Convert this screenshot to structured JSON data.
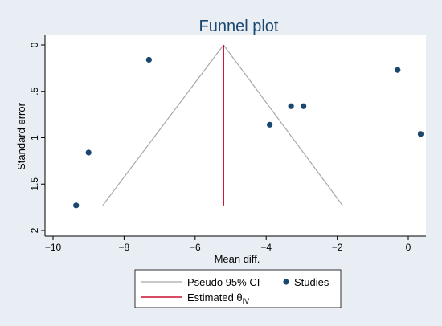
{
  "chart_data": {
    "type": "scatter",
    "title": "Funnel plot",
    "xlabel": "Mean diff.",
    "ylabel": "Standard error",
    "xlim": [
      -10.3,
      0.4
    ],
    "ylim": [
      0,
      2.0
    ],
    "y_reversed": true,
    "x_ticks": [
      -10,
      -8,
      -6,
      -4,
      -2,
      0
    ],
    "y_ticks": [
      0,
      0.5,
      1,
      1.5,
      2
    ],
    "x_tick_labels": [
      "−10",
      "−8",
      "−6",
      "−4",
      "−2",
      "0"
    ],
    "y_tick_labels": [
      "0",
      ".5",
      "1",
      "1.5",
      "2"
    ],
    "grid": false,
    "studies": {
      "name": "Studies",
      "points": [
        {
          "x": -9.35,
          "y": 1.73
        },
        {
          "x": -9.0,
          "y": 1.16
        },
        {
          "x": -7.3,
          "y": 0.16
        },
        {
          "x": -3.9,
          "y": 0.86
        },
        {
          "x": -3.3,
          "y": 0.66
        },
        {
          "x": -2.95,
          "y": 0.66
        },
        {
          "x": -0.3,
          "y": 0.27
        },
        {
          "x": 0.35,
          "y": 0.96
        }
      ]
    },
    "estimate": {
      "x": -5.2,
      "y_range": [
        0,
        1.73
      ]
    },
    "ci_funnel": {
      "apex": [
        -5.2,
        0
      ],
      "left_base": [
        -8.6,
        1.73
      ],
      "right_base": [
        -1.85,
        1.73
      ]
    },
    "legend": {
      "position": "bottom",
      "entries": [
        {
          "label": "Pseudo 95% CI",
          "kind": "ci"
        },
        {
          "label": "Studies",
          "kind": "studies"
        },
        {
          "label": "Estimated θ",
          "sub": "IV",
          "kind": "estimate"
        }
      ]
    },
    "colors": {
      "background": "#e8eef3",
      "plot_bg": "#ffffff",
      "marker": "#1a476f",
      "ci_line": "#a8a8a8",
      "estimate_line": "#c8102e",
      "title": "#1a476f",
      "text": "#000000"
    }
  }
}
